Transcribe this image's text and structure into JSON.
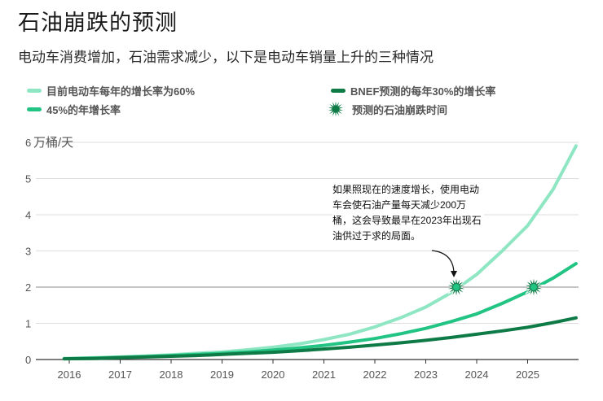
{
  "title": "石油崩跌的预测",
  "subtitle": "电动车消费增加，石油需求减少，以下是电动车销量上升的三种情况",
  "legend": [
    {
      "label": "目前电动车每年的增长率为60%",
      "color": "#8ee6c3",
      "kind": "line"
    },
    {
      "label": "BNEF预测的每年30%的增长率",
      "color": "#0e7a46",
      "kind": "line"
    },
    {
      "label": "45%的年增长率",
      "color": "#22c483",
      "kind": "line"
    },
    {
      "label": "预测的石油崩跌时间",
      "color": "#0e7a46",
      "kind": "star"
    }
  ],
  "annotation": "如果照现在的速度增长，使用电动车会使石油产量每天减少200万桶，这会导致最早在2023年出现石油供过于求的局面。",
  "colors": {
    "grid": "#dddddd",
    "reference": "#888888",
    "axis": "#333333"
  },
  "chart_data": {
    "type": "line",
    "ylabel": "万桶/天",
    "ylim": [
      0,
      6
    ],
    "yticks": [
      0,
      1,
      2,
      3,
      4,
      5,
      6
    ],
    "xticks": [
      2016,
      2017,
      2018,
      2019,
      2020,
      2021,
      2022,
      2023,
      2024,
      2025
    ],
    "xlim": [
      2016,
      2025.95
    ],
    "reference_line": 2,
    "series": [
      {
        "name": "目前电动车每年的增长率为60%",
        "color": "#8ee6c3",
        "x": [
          2015.9,
          2016.5,
          2017,
          2017.5,
          2018,
          2018.5,
          2019,
          2019.5,
          2020,
          2020.5,
          2021,
          2021.5,
          2022,
          2022.5,
          2023,
          2023.5,
          2024,
          2024.5,
          2025,
          2025.5,
          2025.95
        ],
        "y": [
          0.03,
          0.05,
          0.07,
          0.1,
          0.13,
          0.17,
          0.21,
          0.27,
          0.34,
          0.43,
          0.55,
          0.7,
          0.9,
          1.15,
          1.45,
          1.85,
          2.35,
          3.0,
          3.7,
          4.7,
          5.9
        ]
      },
      {
        "name": "45%的年增长率",
        "color": "#22c483",
        "x": [
          2015.9,
          2016.5,
          2017,
          2017.5,
          2018,
          2018.5,
          2019,
          2019.5,
          2020,
          2020.5,
          2021,
          2021.5,
          2022,
          2022.5,
          2023,
          2023.5,
          2024,
          2024.5,
          2025,
          2025.5,
          2025.95
        ],
        "y": [
          0.02,
          0.04,
          0.06,
          0.08,
          0.11,
          0.14,
          0.17,
          0.21,
          0.26,
          0.32,
          0.39,
          0.48,
          0.58,
          0.71,
          0.86,
          1.05,
          1.26,
          1.55,
          1.87,
          2.25,
          2.65
        ]
      },
      {
        "name": "BNEF预测的每年30%的增长率",
        "color": "#0e7a46",
        "x": [
          2015.9,
          2016.5,
          2017,
          2017.5,
          2018,
          2018.5,
          2019,
          2019.5,
          2020,
          2020.5,
          2021,
          2021.5,
          2022,
          2022.5,
          2023,
          2023.5,
          2024,
          2024.5,
          2025,
          2025.5,
          2025.95
        ],
        "y": [
          0.02,
          0.03,
          0.05,
          0.07,
          0.09,
          0.11,
          0.14,
          0.17,
          0.2,
          0.24,
          0.29,
          0.34,
          0.4,
          0.46,
          0.53,
          0.61,
          0.7,
          0.79,
          0.89,
          1.02,
          1.15
        ]
      }
    ],
    "crash_points": [
      {
        "x": 2023.6,
        "y": 2,
        "series": "目前电动车每年的增长率为60%"
      },
      {
        "x": 2025.12,
        "y": 2,
        "series": "45%的年增长率"
      }
    ],
    "grid": true,
    "legend_position": "top"
  }
}
